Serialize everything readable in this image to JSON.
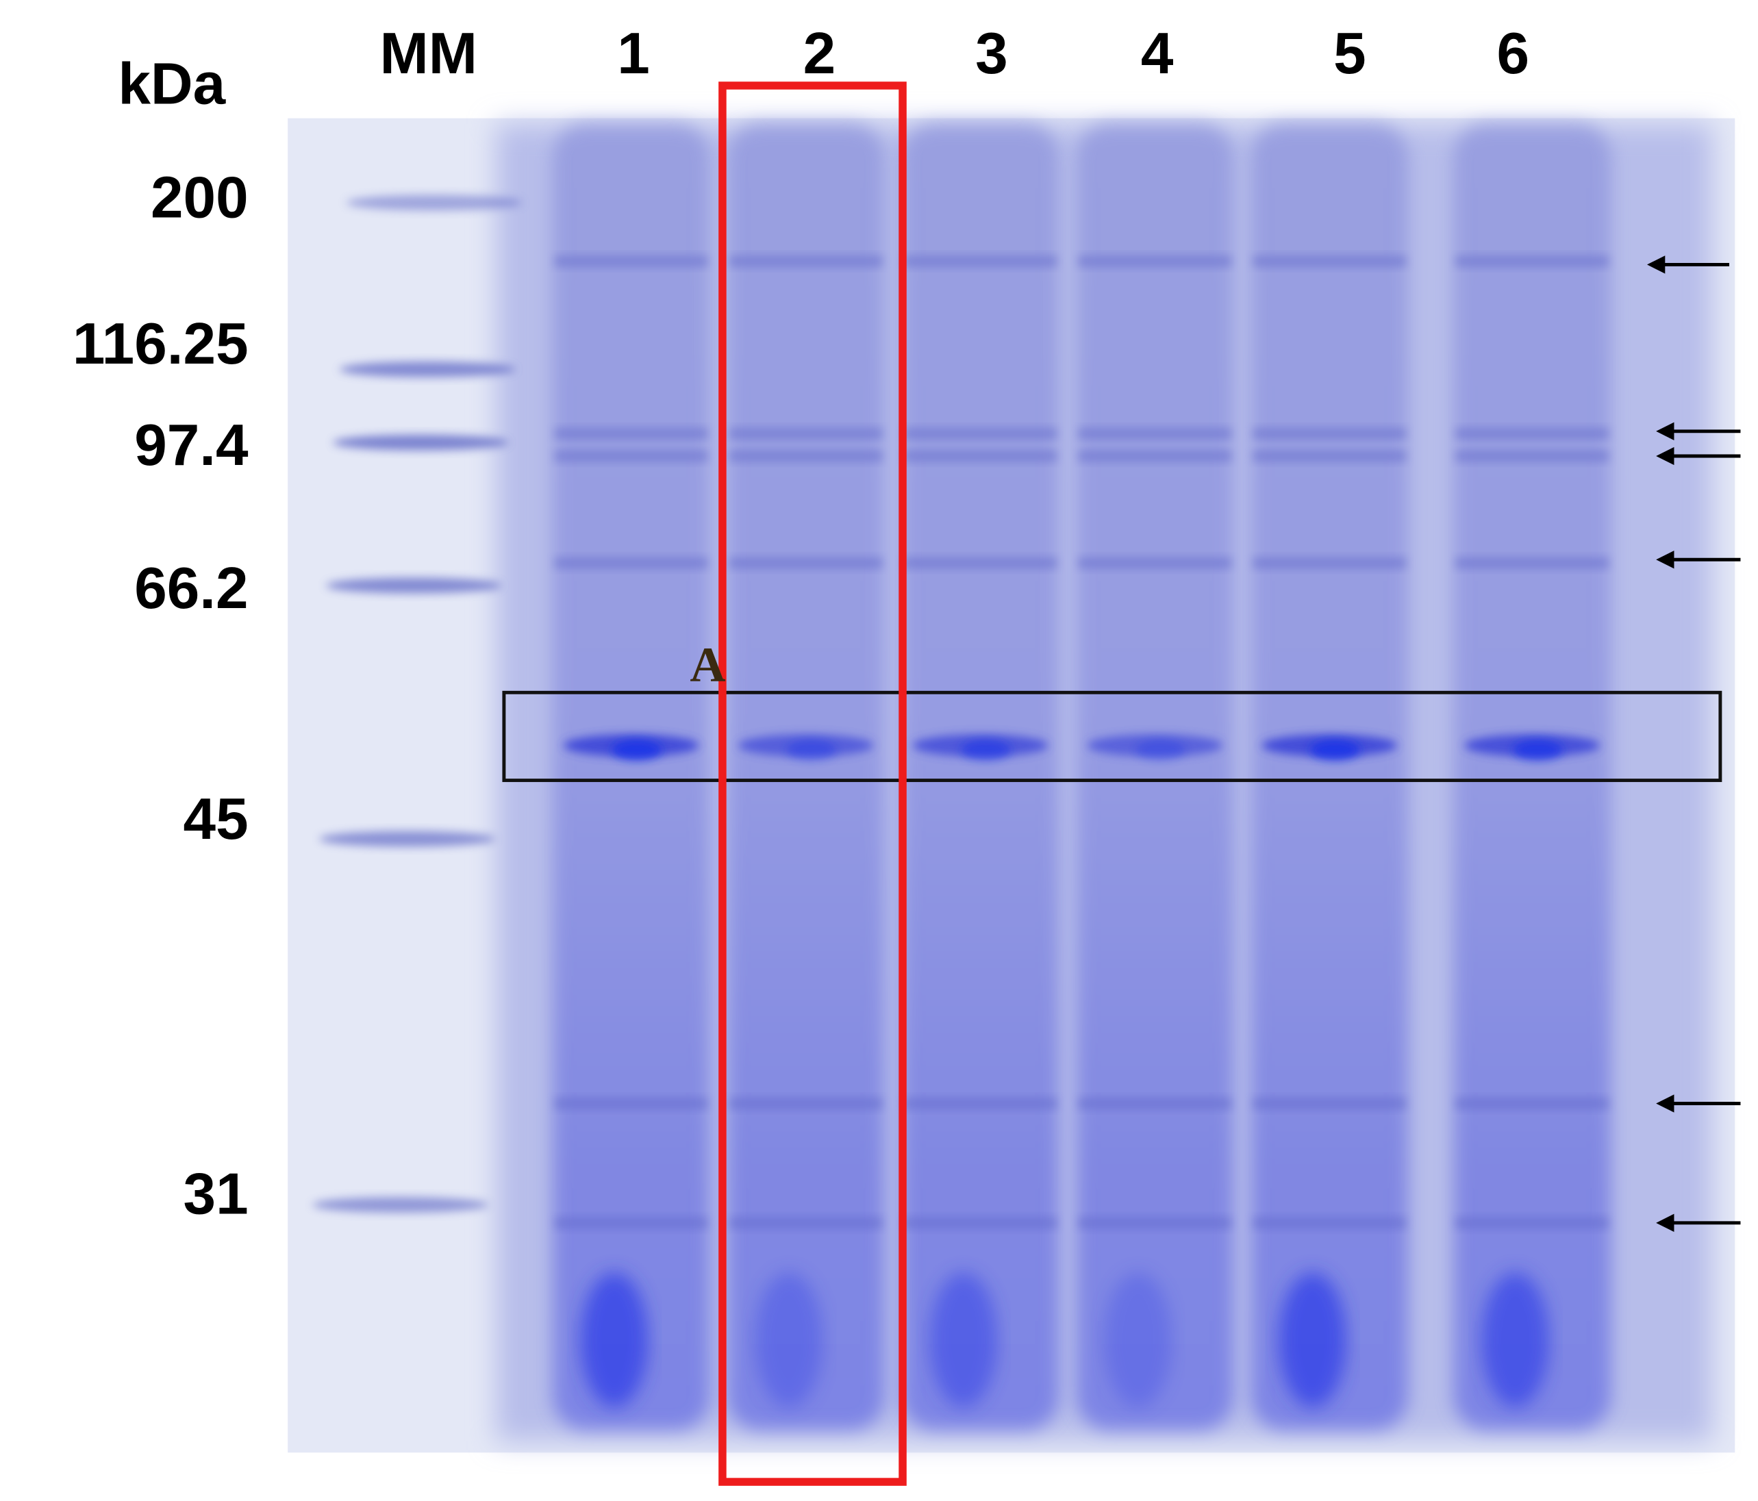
{
  "header": {
    "unit": "kDa",
    "lanes": [
      "MM",
      "1",
      "2",
      "3",
      "4",
      "5",
      "6"
    ]
  },
  "markers": [
    "200",
    "116.25",
    "97.4",
    "66.2",
    "45",
    "31"
  ],
  "annotation": "A"
}
